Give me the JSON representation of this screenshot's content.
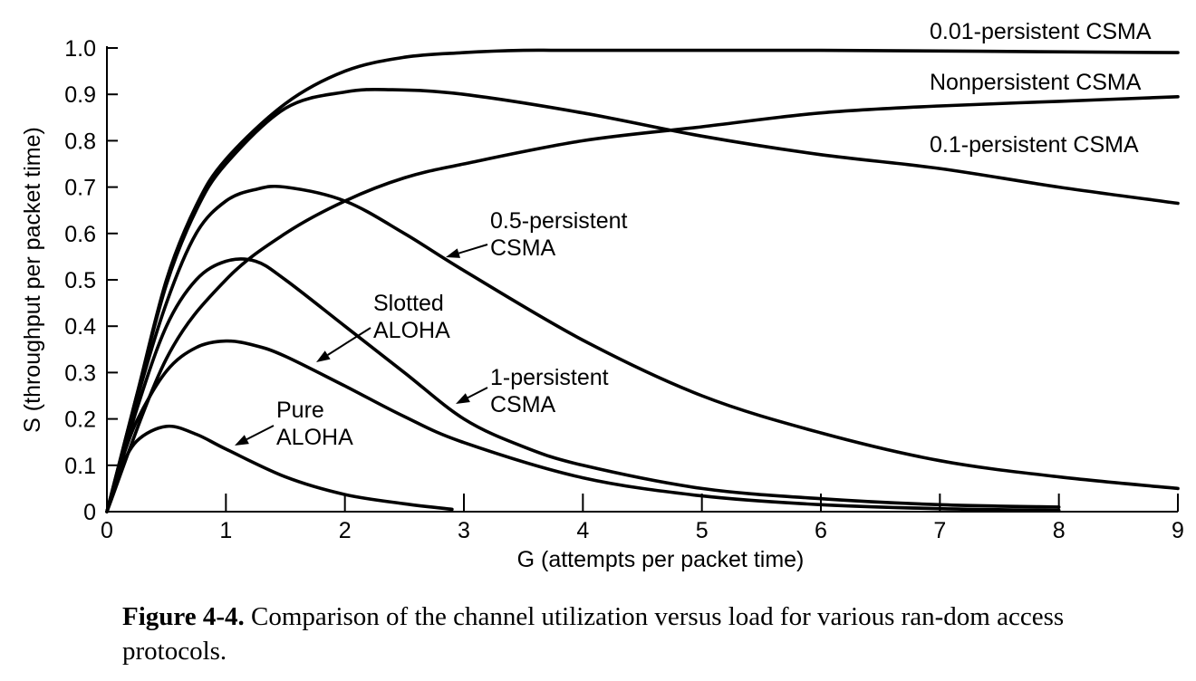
{
  "chart_data": {
    "type": "line",
    "xlabel": "G (attempts per packet time)",
    "ylabel": "S (throughput per packet time)",
    "xlim": [
      0,
      9
    ],
    "ylim": [
      0,
      1.0
    ],
    "x_ticks": [
      "0",
      "1",
      "2",
      "3",
      "4",
      "5",
      "6",
      "7",
      "8",
      "9"
    ],
    "y_ticks": [
      "0",
      "0.1",
      "0.2",
      "0.3",
      "0.4",
      "0.5",
      "0.6",
      "0.7",
      "0.8",
      "0.9",
      "1.0"
    ],
    "grid": false,
    "legend": "none",
    "series": [
      {
        "name": "0.01-persistent CSMA",
        "label_lines": [
          "0.01-persistent CSMA"
        ],
        "points": [
          [
            0,
            0
          ],
          [
            0.25,
            0.25
          ],
          [
            0.5,
            0.5
          ],
          [
            0.75,
            0.66
          ],
          [
            1,
            0.76
          ],
          [
            1.5,
            0.88
          ],
          [
            2,
            0.95
          ],
          [
            2.5,
            0.98
          ],
          [
            3,
            0.99
          ],
          [
            3.5,
            0.995
          ],
          [
            4,
            0.995
          ],
          [
            6,
            0.995
          ],
          [
            9,
            0.99
          ]
        ]
      },
      {
        "name": "Nonpersistent CSMA",
        "label_lines": [
          "Nonpersistent CSMA"
        ],
        "points": [
          [
            0,
            0
          ],
          [
            0.5,
            0.33
          ],
          [
            1,
            0.5
          ],
          [
            1.5,
            0.6
          ],
          [
            2,
            0.67
          ],
          [
            2.5,
            0.72
          ],
          [
            3,
            0.75
          ],
          [
            4,
            0.8
          ],
          [
            5,
            0.83
          ],
          [
            6,
            0.86
          ],
          [
            7,
            0.875
          ],
          [
            8,
            0.885
          ],
          [
            9,
            0.895
          ]
        ]
      },
      {
        "name": "0.1-persistent CSMA",
        "label_lines": [
          "0.1-persistent CSMA"
        ],
        "points": [
          [
            0,
            0
          ],
          [
            0.25,
            0.25
          ],
          [
            0.5,
            0.49
          ],
          [
            0.75,
            0.65
          ],
          [
            1,
            0.75
          ],
          [
            1.5,
            0.87
          ],
          [
            2,
            0.905
          ],
          [
            2.4,
            0.91
          ],
          [
            3,
            0.9
          ],
          [
            4,
            0.86
          ],
          [
            5,
            0.81
          ],
          [
            6,
            0.77
          ],
          [
            7,
            0.74
          ],
          [
            8,
            0.7
          ],
          [
            9,
            0.665
          ]
        ]
      },
      {
        "name": "0.5-persistent CSMA",
        "label_lines": [
          "0.5-persistent",
          "CSMA"
        ],
        "points": [
          [
            0,
            0
          ],
          [
            0.25,
            0.24
          ],
          [
            0.5,
            0.45
          ],
          [
            0.75,
            0.6
          ],
          [
            1,
            0.67
          ],
          [
            1.25,
            0.695
          ],
          [
            1.5,
            0.7
          ],
          [
            2,
            0.67
          ],
          [
            2.5,
            0.6
          ],
          [
            3,
            0.52
          ],
          [
            4,
            0.37
          ],
          [
            5,
            0.25
          ],
          [
            6,
            0.17
          ],
          [
            7,
            0.11
          ],
          [
            8,
            0.075
          ],
          [
            9,
            0.05
          ]
        ]
      },
      {
        "name": "1-persistent CSMA",
        "label_lines": [
          "1-persistent",
          "CSMA"
        ],
        "points": [
          [
            0,
            0
          ],
          [
            0.25,
            0.22
          ],
          [
            0.5,
            0.4
          ],
          [
            0.75,
            0.5
          ],
          [
            1,
            0.54
          ],
          [
            1.25,
            0.54
          ],
          [
            1.5,
            0.5
          ],
          [
            2,
            0.4
          ],
          [
            2.5,
            0.3
          ],
          [
            3,
            0.2
          ],
          [
            3.5,
            0.14
          ],
          [
            4,
            0.1
          ],
          [
            5,
            0.05
          ],
          [
            6,
            0.028
          ],
          [
            7,
            0.015
          ],
          [
            8,
            0.01
          ]
        ]
      },
      {
        "name": "Slotted ALOHA",
        "label_lines": [
          "Slotted",
          "ALOHA"
        ],
        "points": [
          [
            0,
            0
          ],
          [
            0.1,
            0.09
          ],
          [
            0.25,
            0.195
          ],
          [
            0.5,
            0.303
          ],
          [
            0.75,
            0.354
          ],
          [
            1,
            0.368
          ],
          [
            1.25,
            0.358
          ],
          [
            1.5,
            0.335
          ],
          [
            2,
            0.271
          ],
          [
            2.5,
            0.205
          ],
          [
            3,
            0.149
          ],
          [
            4,
            0.073
          ],
          [
            5,
            0.034
          ],
          [
            6,
            0.015
          ],
          [
            7,
            0.0064
          ],
          [
            8,
            0.0027
          ]
        ]
      },
      {
        "name": "Pure ALOHA",
        "label_lines": [
          "Pure",
          "ALOHA"
        ],
        "points": [
          [
            0,
            0
          ],
          [
            0.1,
            0.082
          ],
          [
            0.25,
            0.152
          ],
          [
            0.5,
            0.184
          ],
          [
            0.75,
            0.167
          ],
          [
            1,
            0.135
          ],
          [
            1.5,
            0.075
          ],
          [
            2,
            0.037
          ],
          [
            2.5,
            0.017
          ],
          [
            2.9,
            0.005
          ]
        ]
      }
    ]
  },
  "caption": {
    "figure_number": "Figure 4-4.",
    "text": "Comparison of the channel utilization versus load for various ran-dom access protocols."
  }
}
